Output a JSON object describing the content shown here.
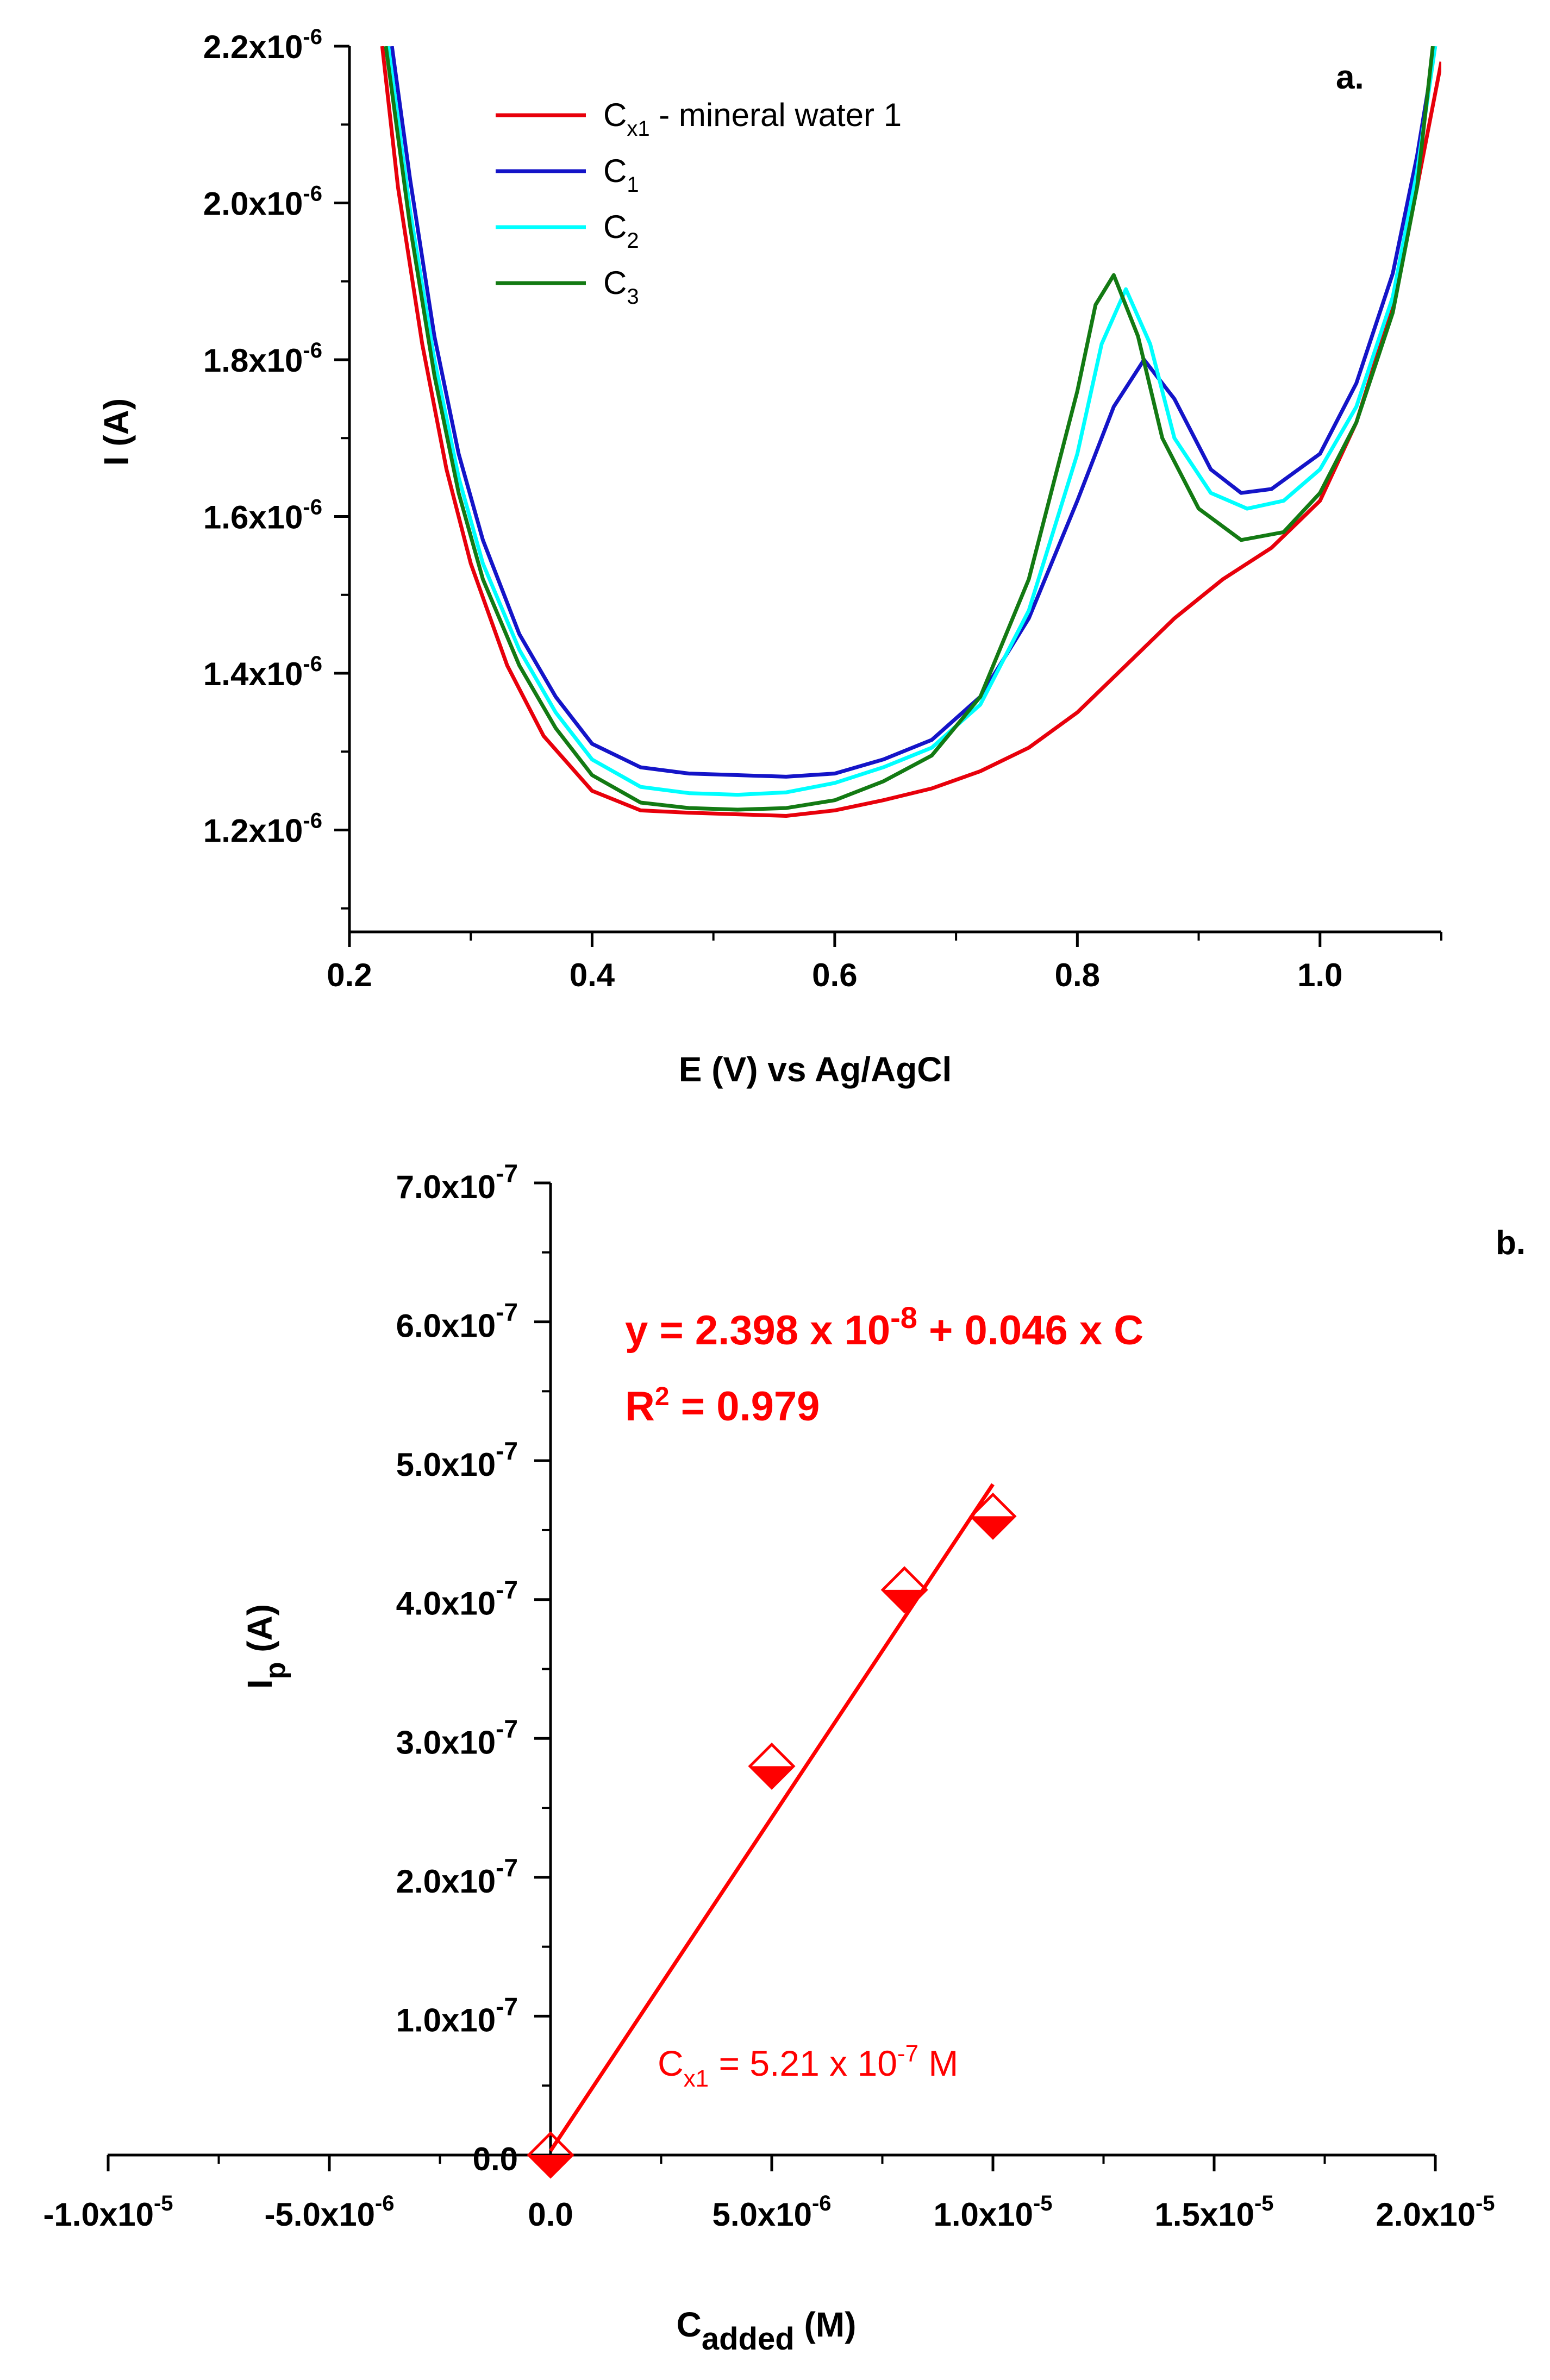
{
  "chart_data": [
    {
      "panel": "a.",
      "type": "line",
      "title": "",
      "xlabel": "E (V) vs Ag/AgCl",
      "ylabel": "I (A)",
      "xlim": [
        0.2,
        1.1
      ],
      "ylim": [
        1.07e-06,
        2.2e-06
      ],
      "x_ticks": [
        {
          "value": 0.2,
          "label": "0.2"
        },
        {
          "value": 0.4,
          "label": "0.4"
        },
        {
          "value": 0.6,
          "label": "0.6"
        },
        {
          "value": 0.8,
          "label": "0.8"
        },
        {
          "value": 1.0,
          "label": "1.0"
        }
      ],
      "y_ticks": [
        {
          "value": 1.2e-06,
          "mantissa": "1.2x10",
          "exponent": "-6"
        },
        {
          "value": 1.4e-06,
          "mantissa": "1.4x10",
          "exponent": "-6"
        },
        {
          "value": 1.6e-06,
          "mantissa": "1.6x10",
          "exponent": "-6"
        },
        {
          "value": 1.8e-06,
          "mantissa": "1.8x10",
          "exponent": "-6"
        },
        {
          "value": 2e-06,
          "mantissa": "2.0x10",
          "exponent": "-6"
        },
        {
          "value": 2.2e-06,
          "mantissa": "2.2x10",
          "exponent": "-6"
        }
      ],
      "legend_position": "top-left",
      "series": [
        {
          "name": "Cx1 - mineral water 1",
          "label_main": "C",
          "label_sub": "x1",
          "label_rest": " - mineral water 1",
          "color": "#e8000b",
          "x": [
            0.227,
            0.24,
            0.26,
            0.28,
            0.3,
            0.33,
            0.36,
            0.4,
            0.44,
            0.48,
            0.52,
            0.56,
            0.6,
            0.64,
            0.68,
            0.72,
            0.76,
            0.8,
            0.84,
            0.88,
            0.92,
            0.96,
            1.0,
            1.03,
            1.06,
            1.08,
            1.1
          ],
          "y": [
            2.2e-06,
            2.02e-06,
            1.82e-06,
            1.66e-06,
            1.54e-06,
            1.41e-06,
            1.32e-06,
            1.25e-06,
            1.225e-06,
            1.222e-06,
            1.22e-06,
            1.218e-06,
            1.225e-06,
            1.238e-06,
            1.253e-06,
            1.275e-06,
            1.305e-06,
            1.35e-06,
            1.41e-06,
            1.47e-06,
            1.52e-06,
            1.56e-06,
            1.62e-06,
            1.72e-06,
            1.87e-06,
            2.02e-06,
            2.18e-06
          ]
        },
        {
          "name": "C1",
          "label_main": "C",
          "label_sub": "1",
          "label_rest": "",
          "color": "#1414c8",
          "x": [
            0.235,
            0.25,
            0.27,
            0.29,
            0.31,
            0.34,
            0.37,
            0.4,
            0.44,
            0.48,
            0.52,
            0.56,
            0.6,
            0.64,
            0.68,
            0.72,
            0.76,
            0.8,
            0.83,
            0.855,
            0.88,
            0.91,
            0.935,
            0.96,
            1.0,
            1.03,
            1.06,
            1.08,
            1.095
          ],
          "y": [
            2.2e-06,
            2.03e-06,
            1.83e-06,
            1.68e-06,
            1.57e-06,
            1.45e-06,
            1.37e-06,
            1.31e-06,
            1.28e-06,
            1.272e-06,
            1.27e-06,
            1.268e-06,
            1.272e-06,
            1.29e-06,
            1.315e-06,
            1.37e-06,
            1.47e-06,
            1.62e-06,
            1.74e-06,
            1.8e-06,
            1.75e-06,
            1.66e-06,
            1.63e-06,
            1.635e-06,
            1.68e-06,
            1.77e-06,
            1.91e-06,
            2.06e-06,
            2.2e-06
          ]
        },
        {
          "name": "C2",
          "label_main": "C",
          "label_sub": "2",
          "label_rest": "",
          "color": "#00ffff",
          "x": [
            0.232,
            0.25,
            0.27,
            0.29,
            0.31,
            0.34,
            0.37,
            0.4,
            0.44,
            0.48,
            0.52,
            0.56,
            0.6,
            0.64,
            0.68,
            0.72,
            0.76,
            0.8,
            0.82,
            0.84,
            0.86,
            0.88,
            0.91,
            0.94,
            0.97,
            1.0,
            1.03,
            1.06,
            1.08,
            1.095
          ],
          "y": [
            2.2e-06,
            1.99e-06,
            1.8e-06,
            1.65e-06,
            1.54e-06,
            1.43e-06,
            1.35e-06,
            1.29e-06,
            1.255e-06,
            1.247e-06,
            1.245e-06,
            1.248e-06,
            1.26e-06,
            1.28e-06,
            1.305e-06,
            1.36e-06,
            1.48e-06,
            1.68e-06,
            1.82e-06,
            1.89e-06,
            1.82e-06,
            1.7e-06,
            1.63e-06,
            1.61e-06,
            1.62e-06,
            1.66e-06,
            1.74e-06,
            1.88e-06,
            2.04e-06,
            2.2e-06
          ]
        },
        {
          "name": "C3",
          "label_main": "C",
          "label_sub": "3",
          "label_rest": "",
          "color": "#137a13",
          "x": [
            0.23,
            0.25,
            0.27,
            0.29,
            0.31,
            0.34,
            0.37,
            0.4,
            0.44,
            0.48,
            0.52,
            0.56,
            0.6,
            0.64,
            0.68,
            0.72,
            0.76,
            0.8,
            0.815,
            0.83,
            0.85,
            0.87,
            0.9,
            0.935,
            0.97,
            1.0,
            1.03,
            1.06,
            1.08,
            1.093
          ],
          "y": [
            2.2e-06,
            1.97e-06,
            1.78e-06,
            1.63e-06,
            1.52e-06,
            1.41e-06,
            1.33e-06,
            1.27e-06,
            1.235e-06,
            1.228e-06,
            1.226e-06,
            1.228e-06,
            1.238e-06,
            1.262e-06,
            1.295e-06,
            1.37e-06,
            1.52e-06,
            1.76e-06,
            1.87e-06,
            1.908e-06,
            1.83e-06,
            1.7e-06,
            1.61e-06,
            1.57e-06,
            1.58e-06,
            1.63e-06,
            1.72e-06,
            1.86e-06,
            2.02e-06,
            2.2e-06
          ]
        }
      ]
    },
    {
      "panel": "b.",
      "type": "scatter",
      "title": "",
      "xlabel_main": "C",
      "xlabel_sub": "added",
      "xlabel_rest": " (M)",
      "ylabel_main": "I",
      "ylabel_sub": "p",
      "ylabel_rest": " (A)",
      "xlim": [
        -1e-05,
        2e-05
      ],
      "ylim": [
        0,
        7e-07
      ],
      "x_ticks": [
        {
          "value": -1e-05,
          "mantissa": "-1.0x10",
          "exponent": "-5"
        },
        {
          "value": -5e-06,
          "mantissa": "-5.0x10",
          "exponent": "-6"
        },
        {
          "value": 0,
          "mantissa": "0.0",
          "exponent": ""
        },
        {
          "value": 5e-06,
          "mantissa": "5.0x10",
          "exponent": "-6"
        },
        {
          "value": 1e-05,
          "mantissa": "1.0x10",
          "exponent": "-5"
        },
        {
          "value": 1.5e-05,
          "mantissa": "1.5x10",
          "exponent": "-5"
        },
        {
          "value": 2e-05,
          "mantissa": "2.0x10",
          "exponent": "-5"
        }
      ],
      "y_ticks": [
        {
          "value": 0,
          "mantissa": "0.0",
          "exponent": ""
        },
        {
          "value": 1e-07,
          "mantissa": "1.0x10",
          "exponent": "-7"
        },
        {
          "value": 2e-07,
          "mantissa": "2.0x10",
          "exponent": "-7"
        },
        {
          "value": 3e-07,
          "mantissa": "3.0x10",
          "exponent": "-7"
        },
        {
          "value": 4e-07,
          "mantissa": "4.0x10",
          "exponent": "-7"
        },
        {
          "value": 5e-07,
          "mantissa": "5.0x10",
          "exponent": "-7"
        },
        {
          "value": 6e-07,
          "mantissa": "6.0x10",
          "exponent": "-7"
        },
        {
          "value": 7e-07,
          "mantissa": "7.0x10",
          "exponent": "-7"
        }
      ],
      "series": [
        {
          "name": "Ip vs Cadded",
          "color": "#ff0000",
          "marker": "half-filled diamond",
          "x": [
            0,
            5e-06,
            8e-06,
            1e-05
          ],
          "y": [
            0.0,
            2.8e-07,
            4.07e-07,
            4.6e-07
          ]
        }
      ],
      "fit": {
        "intercept": 2.398e-08,
        "slope": 0.046,
        "x_range": [
          0,
          1e-05
        ],
        "color": "#ff0000"
      },
      "annotations": {
        "equation_prefix": "y = 2.398 x 10",
        "equation_exp": "-8",
        "equation_suffix": " + 0.046 x C",
        "r2_main": "R",
        "r2_sup": "2",
        "r2_value": " = 0.979",
        "cx_main": "C",
        "cx_sub": "x1",
        "cx_value": " = 5.21 x 10",
        "cx_exp": "-7",
        "cx_unit": " M"
      }
    }
  ]
}
